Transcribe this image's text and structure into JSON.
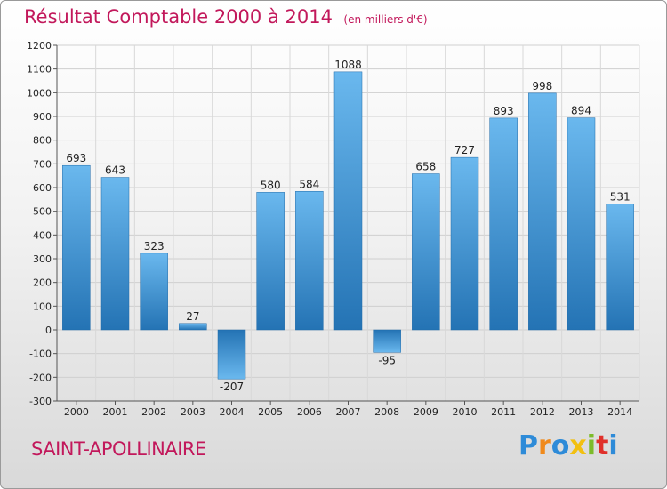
{
  "chart_data": {
    "type": "bar",
    "title": "Résultat Comptable 2000 à 2014",
    "subtitle": "(en milliers d'€)",
    "categories": [
      "2000",
      "2001",
      "2002",
      "2003",
      "2004",
      "2005",
      "2006",
      "2007",
      "2008",
      "2009",
      "2010",
      "2011",
      "2012",
      "2013",
      "2014"
    ],
    "values": [
      693,
      643,
      323,
      27,
      -207,
      580,
      584,
      1088,
      -95,
      658,
      727,
      893,
      998,
      894,
      531
    ],
    "ylim": [
      -300,
      1200
    ],
    "yticks": [
      -300,
      -200,
      -100,
      0,
      100,
      200,
      300,
      400,
      500,
      600,
      700,
      800,
      900,
      1000,
      1100,
      1200
    ],
    "xlabel": "",
    "ylabel": "",
    "grid": true
  },
  "footer": {
    "commune": "SAINT-APOLLINAIRE",
    "brand_letters": [
      "P",
      "r",
      "o",
      "x",
      "i",
      "t",
      "i"
    ]
  },
  "colors": {
    "title": "#c2185b",
    "bar_light": "#6ab8ee",
    "bar_dark": "#2473b4",
    "brand": [
      "#2e8bd8",
      "#f08a1c",
      "#2e8bd8",
      "#f2c010",
      "#7cbb2a",
      "#e0302a",
      "#2e8bd8"
    ]
  }
}
